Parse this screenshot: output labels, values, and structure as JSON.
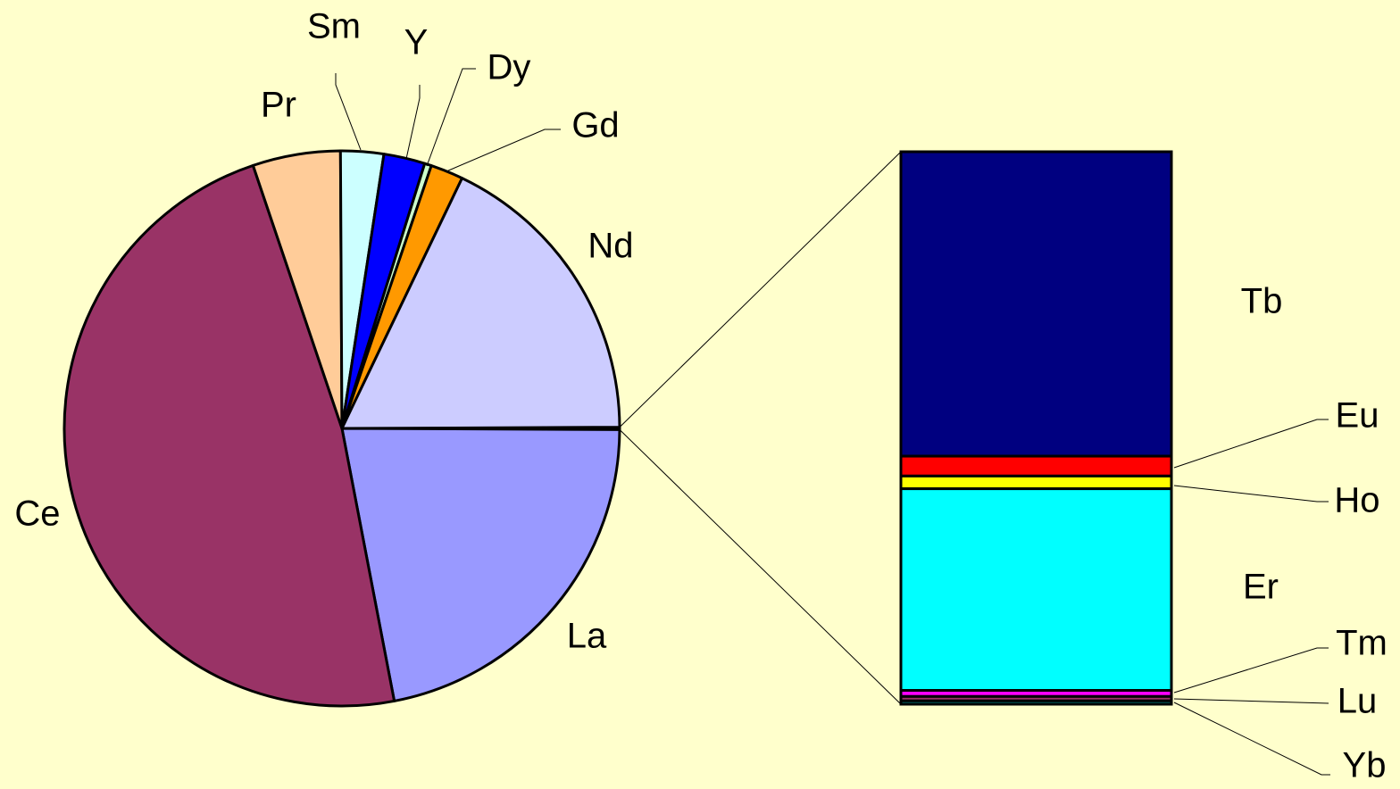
{
  "chart_data": {
    "type": "bar-of-pie",
    "categories": [
      null,
      "La",
      "Ce",
      "Pr",
      "Sm",
      "Y",
      "Dy",
      "Gd",
      "Nd"
    ],
    "values": [
      0.14,
      21.9,
      47.8,
      5.1,
      2.5,
      2.4,
      0.4,
      1.9,
      17.8
    ],
    "colors": [
      "#333333",
      "#9999ff",
      "#993366",
      "#ffcc99",
      "#ccffff",
      "#0000ff",
      "#ccffcc",
      "#ff9900",
      "#ccccff"
    ],
    "breakout": {
      "categories": [
        "Tb",
        "Eu",
        "Ho",
        "Er",
        "Tm",
        "Lu",
        "Yb"
      ],
      "values": [
        55.1,
        3.6,
        2.3,
        36.5,
        1.1,
        0.8,
        0.6
      ],
      "colors": [
        "#000080",
        "#ff0000",
        "#ffff00",
        "#00ffff",
        "#ff00ff",
        "#993366",
        "#008080"
      ]
    }
  }
}
